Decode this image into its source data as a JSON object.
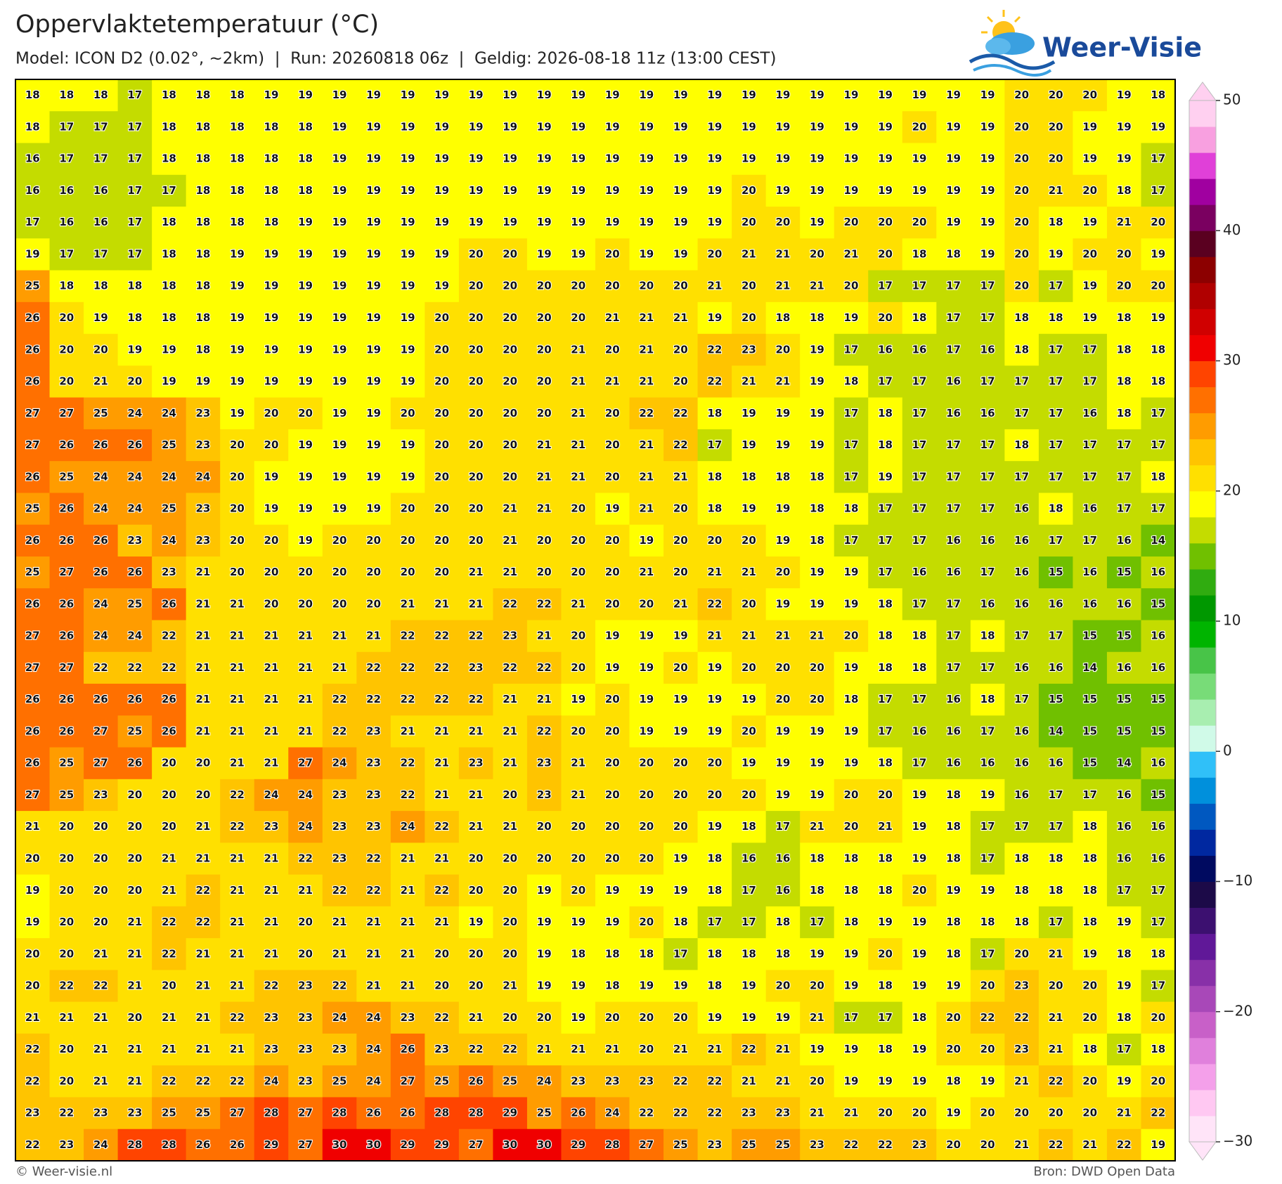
{
  "header": {
    "title": "Oppervlaktetemperatuur (°C)",
    "subtitle": "Model: ICON D2 (0.02°, ~2km)  |  Run: 20260818 06z  |  Geldig: 2026-08-18 11z (13:00 CEST)",
    "logo": "Weer-Visie"
  },
  "map": {
    "rows": [
      [
        18,
        18,
        18,
        17,
        18,
        18,
        18,
        19,
        19,
        19,
        19,
        19,
        19,
        19,
        19,
        19,
        19,
        19,
        19,
        19,
        19,
        19,
        19,
        19,
        19,
        19,
        19,
        19,
        19,
        20,
        20,
        20,
        19,
        18
      ],
      [
        18,
        17,
        17,
        17,
        18,
        18,
        18,
        18,
        18,
        19,
        19,
        19,
        19,
        19,
        19,
        19,
        19,
        19,
        19,
        19,
        19,
        19,
        19,
        19,
        19,
        19,
        20,
        19,
        19,
        20,
        20,
        19,
        19,
        19
      ],
      [
        16,
        17,
        17,
        17,
        18,
        18,
        18,
        18,
        18,
        19,
        19,
        19,
        19,
        19,
        19,
        19,
        19,
        19,
        19,
        19,
        19,
        19,
        19,
        19,
        19,
        19,
        19,
        19,
        19,
        20,
        20,
        19,
        19,
        17
      ],
      [
        16,
        16,
        16,
        17,
        17,
        18,
        18,
        18,
        18,
        19,
        19,
        19,
        19,
        19,
        19,
        19,
        19,
        19,
        19,
        19,
        19,
        20,
        19,
        19,
        19,
        19,
        19,
        19,
        19,
        20,
        21,
        20,
        18,
        17
      ],
      [
        17,
        16,
        16,
        17,
        18,
        18,
        18,
        18,
        19,
        19,
        19,
        19,
        19,
        19,
        19,
        19,
        19,
        19,
        19,
        19,
        19,
        20,
        20,
        19,
        20,
        20,
        20,
        19,
        19,
        20,
        18,
        19,
        21,
        20
      ],
      [
        19,
        17,
        17,
        17,
        18,
        18,
        19,
        19,
        19,
        19,
        19,
        19,
        19,
        20,
        20,
        19,
        19,
        20,
        19,
        19,
        20,
        21,
        21,
        20,
        21,
        20,
        18,
        18,
        19,
        20,
        19,
        20,
        20,
        19
      ],
      [
        25,
        18,
        18,
        18,
        18,
        18,
        19,
        19,
        19,
        19,
        19,
        19,
        19,
        20,
        20,
        20,
        20,
        20,
        20,
        20,
        21,
        20,
        21,
        21,
        20,
        17,
        17,
        17,
        17,
        20,
        17,
        19,
        20,
        20
      ],
      [
        26,
        20,
        19,
        18,
        18,
        18,
        19,
        19,
        19,
        19,
        19,
        19,
        20,
        20,
        20,
        20,
        20,
        21,
        21,
        21,
        19,
        20,
        18,
        18,
        19,
        20,
        18,
        17,
        17,
        18,
        18,
        19,
        18,
        19
      ],
      [
        26,
        20,
        20,
        19,
        19,
        18,
        19,
        19,
        19,
        19,
        19,
        19,
        20,
        20,
        20,
        20,
        21,
        20,
        21,
        20,
        22,
        23,
        20,
        19,
        17,
        16,
        16,
        17,
        16,
        18,
        17,
        17,
        18,
        18
      ],
      [
        26,
        20,
        21,
        20,
        19,
        19,
        19,
        19,
        19,
        19,
        19,
        19,
        20,
        20,
        20,
        20,
        21,
        21,
        21,
        20,
        22,
        21,
        21,
        19,
        18,
        17,
        17,
        16,
        17,
        17,
        17,
        17,
        18,
        18
      ],
      [
        27,
        27,
        25,
        24,
        24,
        23,
        19,
        20,
        20,
        19,
        19,
        20,
        20,
        20,
        20,
        20,
        21,
        20,
        22,
        22,
        18,
        19,
        19,
        19,
        17,
        18,
        17,
        16,
        16,
        17,
        17,
        16,
        18,
        17
      ],
      [
        27,
        26,
        26,
        26,
        25,
        23,
        20,
        20,
        19,
        19,
        19,
        19,
        20,
        20,
        20,
        21,
        21,
        20,
        21,
        22,
        17,
        19,
        19,
        19,
        17,
        18,
        17,
        17,
        17,
        18,
        17,
        17,
        17,
        17
      ],
      [
        26,
        25,
        24,
        24,
        24,
        24,
        20,
        19,
        19,
        19,
        19,
        19,
        20,
        20,
        20,
        21,
        21,
        20,
        21,
        21,
        18,
        18,
        18,
        18,
        17,
        19,
        17,
        17,
        17,
        17,
        17,
        17,
        17,
        18
      ],
      [
        25,
        26,
        24,
        24,
        25,
        23,
        20,
        19,
        19,
        19,
        19,
        20,
        20,
        20,
        21,
        21,
        20,
        19,
        21,
        20,
        18,
        19,
        19,
        18,
        18,
        17,
        17,
        17,
        17,
        16,
        18,
        16,
        17,
        17
      ],
      [
        26,
        26,
        26,
        23,
        24,
        23,
        20,
        20,
        19,
        20,
        20,
        20,
        20,
        20,
        21,
        20,
        20,
        20,
        19,
        20,
        20,
        20,
        19,
        18,
        17,
        17,
        17,
        16,
        16,
        16,
        17,
        17,
        16,
        14
      ],
      [
        25,
        27,
        26,
        26,
        23,
        21,
        20,
        20,
        20,
        20,
        20,
        20,
        20,
        21,
        21,
        20,
        20,
        20,
        21,
        20,
        21,
        21,
        20,
        19,
        19,
        17,
        16,
        16,
        17,
        16,
        15,
        16,
        15,
        16
      ],
      [
        26,
        26,
        24,
        25,
        26,
        21,
        21,
        20,
        20,
        20,
        20,
        21,
        21,
        21,
        22,
        22,
        21,
        20,
        20,
        21,
        22,
        20,
        19,
        19,
        19,
        18,
        17,
        17,
        16,
        16,
        16,
        16,
        16,
        15
      ],
      [
        27,
        26,
        24,
        24,
        22,
        21,
        21,
        21,
        21,
        21,
        21,
        22,
        22,
        22,
        23,
        21,
        20,
        19,
        19,
        19,
        21,
        21,
        21,
        21,
        20,
        18,
        18,
        17,
        18,
        17,
        17,
        15,
        15,
        16
      ],
      [
        27,
        27,
        22,
        22,
        22,
        21,
        21,
        21,
        21,
        21,
        22,
        22,
        22,
        23,
        22,
        22,
        20,
        19,
        19,
        20,
        19,
        20,
        20,
        20,
        19,
        18,
        18,
        17,
        17,
        16,
        16,
        14,
        16,
        16
      ],
      [
        26,
        26,
        26,
        26,
        26,
        21,
        21,
        21,
        21,
        22,
        22,
        22,
        22,
        22,
        21,
        21,
        19,
        20,
        19,
        19,
        19,
        19,
        20,
        20,
        18,
        17,
        17,
        16,
        18,
        17,
        15,
        15,
        15,
        15
      ],
      [
        26,
        26,
        27,
        25,
        26,
        21,
        21,
        21,
        21,
        22,
        23,
        21,
        21,
        21,
        21,
        22,
        20,
        20,
        19,
        19,
        19,
        20,
        19,
        19,
        19,
        17,
        16,
        16,
        17,
        16,
        14,
        15,
        15,
        15
      ],
      [
        26,
        25,
        27,
        26,
        20,
        20,
        21,
        21,
        27,
        24,
        23,
        22,
        21,
        23,
        21,
        23,
        21,
        20,
        20,
        20,
        20,
        19,
        19,
        19,
        19,
        18,
        17,
        16,
        16,
        16,
        16,
        15,
        14,
        16
      ],
      [
        27,
        25,
        23,
        20,
        20,
        20,
        22,
        24,
        24,
        23,
        23,
        22,
        21,
        21,
        20,
        23,
        21,
        20,
        20,
        20,
        20,
        20,
        19,
        19,
        20,
        20,
        19,
        18,
        19,
        16,
        17,
        17,
        16,
        15
      ],
      [
        21,
        20,
        20,
        20,
        20,
        21,
        22,
        23,
        24,
        23,
        23,
        24,
        22,
        21,
        21,
        20,
        20,
        20,
        20,
        20,
        19,
        18,
        17,
        21,
        20,
        21,
        19,
        18,
        17,
        17,
        17,
        18,
        16,
        16
      ],
      [
        20,
        20,
        20,
        20,
        21,
        21,
        21,
        21,
        22,
        23,
        22,
        21,
        21,
        20,
        20,
        20,
        20,
        20,
        20,
        19,
        18,
        16,
        16,
        18,
        18,
        18,
        19,
        18,
        17,
        18,
        18,
        18,
        16,
        16
      ],
      [
        19,
        20,
        20,
        20,
        21,
        22,
        21,
        21,
        21,
        22,
        22,
        21,
        22,
        20,
        20,
        19,
        20,
        19,
        19,
        19,
        18,
        17,
        16,
        18,
        18,
        18,
        20,
        19,
        19,
        18,
        18,
        18,
        17,
        17
      ],
      [
        19,
        20,
        20,
        21,
        22,
        22,
        21,
        21,
        20,
        21,
        21,
        21,
        21,
        19,
        20,
        19,
        19,
        19,
        20,
        18,
        17,
        17,
        18,
        17,
        18,
        19,
        19,
        18,
        18,
        18,
        17,
        18,
        19,
        17
      ],
      [
        20,
        20,
        21,
        21,
        22,
        21,
        21,
        21,
        20,
        21,
        21,
        21,
        20,
        20,
        20,
        19,
        18,
        18,
        18,
        17,
        18,
        18,
        18,
        19,
        19,
        20,
        19,
        18,
        17,
        20,
        21,
        19,
        18,
        18
      ],
      [
        20,
        22,
        22,
        21,
        20,
        21,
        21,
        22,
        23,
        22,
        21,
        21,
        20,
        20,
        21,
        19,
        19,
        18,
        19,
        19,
        18,
        19,
        20,
        20,
        19,
        18,
        19,
        19,
        20,
        23,
        20,
        20,
        19,
        17
      ],
      [
        21,
        21,
        21,
        20,
        21,
        21,
        22,
        23,
        23,
        24,
        24,
        23,
        22,
        21,
        20,
        20,
        19,
        20,
        20,
        20,
        19,
        19,
        19,
        21,
        17,
        17,
        18,
        20,
        22,
        22,
        21,
        20,
        18,
        20
      ],
      [
        22,
        20,
        21,
        21,
        21,
        21,
        21,
        23,
        23,
        23,
        24,
        26,
        23,
        22,
        22,
        21,
        21,
        21,
        20,
        21,
        21,
        22,
        21,
        19,
        19,
        18,
        19,
        20,
        20,
        23,
        21,
        18,
        17,
        18
      ],
      [
        22,
        20,
        21,
        21,
        22,
        22,
        22,
        24,
        23,
        25,
        24,
        27,
        25,
        26,
        25,
        24,
        23,
        23,
        23,
        22,
        22,
        21,
        21,
        20,
        19,
        19,
        19,
        18,
        19,
        21,
        22,
        20,
        19,
        20
      ],
      [
        23,
        22,
        23,
        23,
        25,
        25,
        27,
        28,
        27,
        28,
        26,
        26,
        28,
        28,
        29,
        25,
        26,
        24,
        22,
        22,
        22,
        23,
        23,
        21,
        21,
        20,
        20,
        19,
        20,
        20,
        20,
        20,
        21,
        22
      ],
      [
        22,
        23,
        24,
        28,
        28,
        26,
        26,
        29,
        27,
        30,
        30,
        29,
        29,
        27,
        30,
        30,
        29,
        28,
        27,
        25,
        23,
        25,
        25,
        23,
        22,
        22,
        23,
        20,
        20,
        21,
        22,
        21,
        22,
        19
      ]
    ]
  },
  "colorbar": {
    "lim": [
      -30,
      50
    ],
    "ticks": [
      50,
      40,
      30,
      20,
      10,
      0,
      {
        "value": -10,
        "label": "−10"
      },
      {
        "value": -20,
        "label": "−20"
      },
      {
        "value": -30,
        "label": "−30"
      }
    ],
    "colors": [
      "#ffe4f8",
      "#ffc8f2",
      "#f4a0ea",
      "#e080dc",
      "#c860c8",
      "#a848b8",
      "#8830a8",
      "#601898",
      "#3c1070",
      "#1c0a48",
      "#000a60",
      "#0028a0",
      "#0058c0",
      "#0090dc",
      "#30c0f8",
      "#d0fae8",
      "#a8eeb0",
      "#78dc78",
      "#48c448",
      "#00b400",
      "#009800",
      "#30ac10",
      "#70c000",
      "#c4dc00",
      "#ffff00",
      "#ffe000",
      "#ffc400",
      "#ff9c00",
      "#ff7000",
      "#ff4400",
      "#f00000",
      "#d00000",
      "#b00000",
      "#8c0000",
      "#5a0020",
      "#7a0060",
      "#a000a0",
      "#e040d8",
      "#f8a0e0",
      "#ffd0f0"
    ]
  },
  "footer": {
    "left": "© Weer-visie.nl",
    "right": "Bron: DWD Open Data"
  }
}
